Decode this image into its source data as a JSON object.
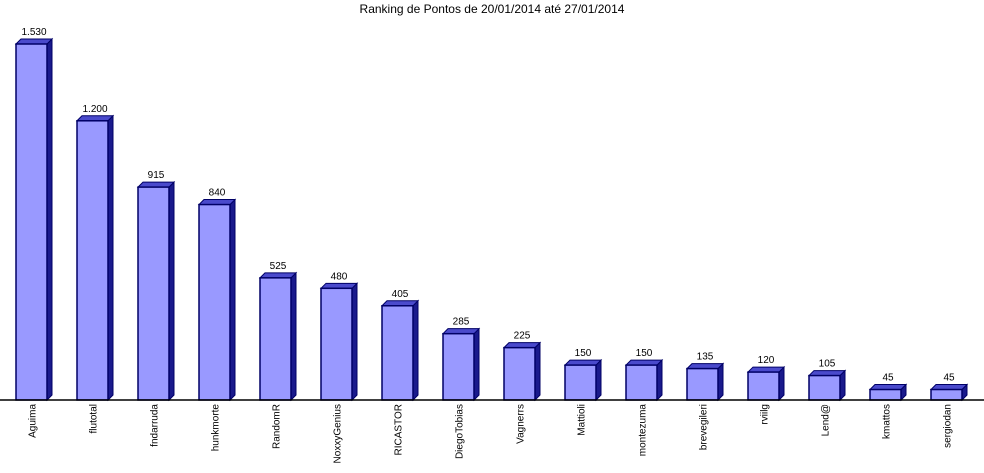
{
  "chart_data": {
    "type": "bar",
    "title": "Ranking de Pontos de 20/01/2014 até 27/01/2014",
    "categories": [
      "Aguima",
      "flutotal",
      "fndarruda",
      "hunkmorte",
      "RandomR",
      "NoxxyGenius",
      "RICASTOR",
      "DiegoTobias",
      "Vagnerrs",
      "Mattioli",
      "montezuma",
      "brevegileri",
      "rviilg",
      "Lend@",
      "kmattos",
      "sergiodan"
    ],
    "values": [
      1530,
      1200,
      915,
      840,
      525,
      480,
      405,
      285,
      225,
      150,
      150,
      135,
      120,
      105,
      45,
      45
    ],
    "value_labels": [
      "1.530",
      "1.200",
      "915",
      "840",
      "525",
      "480",
      "405",
      "285",
      "225",
      "150",
      "150",
      "135",
      "120",
      "105",
      "45",
      "45"
    ],
    "xlabel": "",
    "ylabel": "",
    "ylim": [
      0,
      1530
    ],
    "grid": false,
    "legend": "none",
    "colors": {
      "bar_front": "#9999ff",
      "bar_side": "#1a1a8c",
      "bar_top": "#4a4acc",
      "bar_outline": "#000066",
      "axis": "#000000",
      "text": "#000000"
    }
  }
}
